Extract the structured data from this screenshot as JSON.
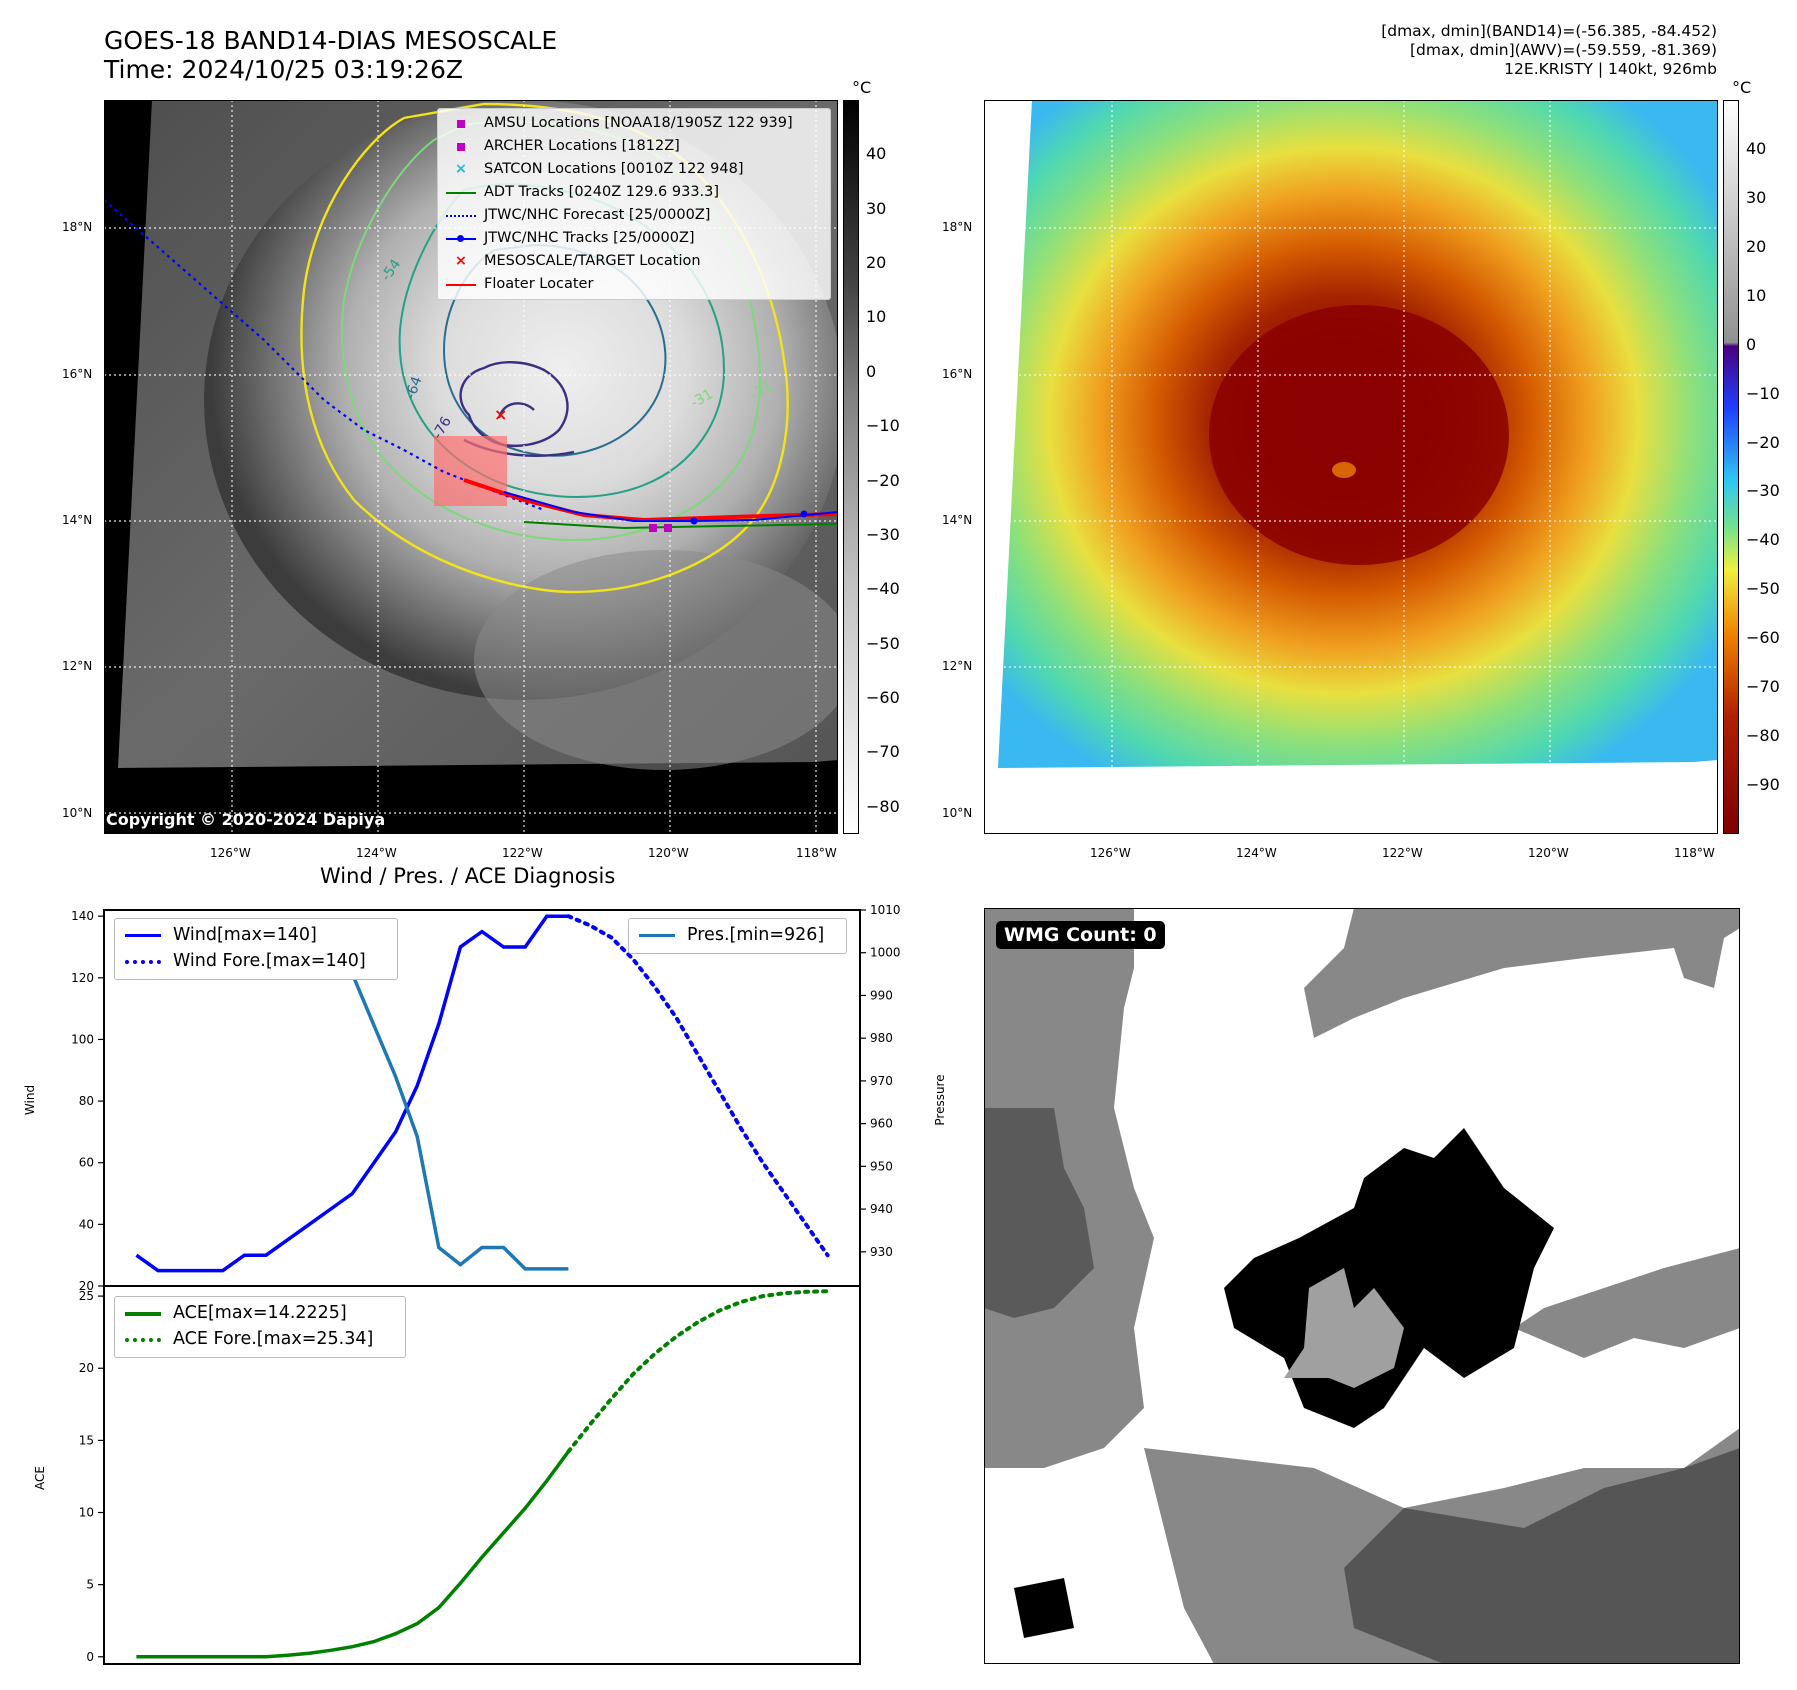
{
  "header": {
    "title_line1": "GOES-18 BAND14-DIAS MESOSCALE",
    "title_line2": "Time: 2024/10/25 03:19:26Z",
    "info_line1": "[dmax, dmin](BAND14)=(-56.385, -84.452)",
    "info_line2": "[dmax, dmin](AWV)=(-59.559, -81.369)",
    "info_line3": "12E.KRISTY | 140kt, 926mb"
  },
  "map_axes": {
    "lat_labels": [
      "18°N",
      "16°N",
      "14°N",
      "12°N",
      "10°N"
    ],
    "lon_labels": [
      "126°W",
      "124°W",
      "122°W",
      "120°W",
      "118°W"
    ]
  },
  "gray_colorbar": {
    "unit": "°C",
    "ticks": [
      "40",
      "30",
      "20",
      "10",
      "0",
      "−10",
      "−20",
      "−30",
      "−40",
      "−50",
      "−60",
      "−70",
      "−80"
    ]
  },
  "color_colorbar": {
    "unit": "°C",
    "ticks": [
      "40",
      "30",
      "20",
      "10",
      "0",
      "−10",
      "−20",
      "−30",
      "−40",
      "−50",
      "−60",
      "−70",
      "−80",
      "−90"
    ]
  },
  "map_legend": {
    "items": [
      {
        "label": "AMSU Locations [NOAA18/1905Z 122 939]",
        "symbol": "square",
        "color": "#c000c0"
      },
      {
        "label": "ARCHER Locations [1812Z]",
        "symbol": "square",
        "color": "#c000c0"
      },
      {
        "label": "SATCON Locations [0010Z 122 948]",
        "symbol": "x",
        "color": "#17becf"
      },
      {
        "label": "ADT Tracks [0240Z 129.6 933.3]",
        "symbol": "line",
        "color": "#008000"
      },
      {
        "label": "JTWC/NHC Forecast [25/0000Z]",
        "symbol": "dotted",
        "color": "#0000ff"
      },
      {
        "label": "JTWC/NHC Tracks [25/0000Z]",
        "symbol": "line-dot",
        "color": "#0000ff"
      },
      {
        "label": "MESOSCALE/TARGET Location",
        "symbol": "x",
        "color": "#ff0000"
      },
      {
        "label": "Floater Locater",
        "symbol": "line",
        "color": "#ff0000"
      }
    ]
  },
  "contour_labels": [
    "-54",
    "-64",
    "-76",
    "-31",
    "-31"
  ],
  "copyright": "Copyright © 2020-2024 Dapiya",
  "wmg_label": "WMG Count: 0",
  "colors": {
    "wind": "#0000ff",
    "pressure": "#1f77b4",
    "ace": "#008000"
  },
  "chart_data": [
    {
      "type": "line",
      "title": "Wind / Pres. / ACE Diagnosis",
      "ylabel": "Wind",
      "y2label": "Pressure",
      "ylim": [
        20,
        142
      ],
      "y2lim": [
        922,
        1010
      ],
      "y_ticks": [
        "140",
        "120",
        "100",
        "80",
        "60",
        "40",
        "20"
      ],
      "y2_ticks": [
        "1010",
        "1000",
        "990",
        "980",
        "970",
        "960",
        "950",
        "940",
        "930"
      ],
      "x": [
        0,
        1,
        2,
        3,
        4,
        5,
        6,
        7,
        8,
        9,
        10,
        11,
        12,
        13,
        14,
        15,
        16,
        17,
        18,
        19,
        20
      ],
      "series": [
        {
          "name": "Wind[max=140]",
          "axis": "left",
          "style": "solid",
          "x": [
            0,
            1,
            2,
            3,
            4,
            5,
            6,
            7,
            8,
            9,
            10,
            11,
            12,
            13,
            14,
            15,
            16,
            17,
            18,
            19,
            20
          ],
          "values": [
            30,
            25,
            25,
            25,
            25,
            30,
            30,
            35,
            40,
            45,
            50,
            60,
            70,
            85,
            105,
            130,
            135,
            130,
            130,
            140,
            140
          ]
        },
        {
          "name": "Wind Fore.[max=140]",
          "axis": "left",
          "style": "dotted",
          "x": [
            20,
            21,
            22,
            23,
            24,
            25,
            26,
            27,
            28,
            29,
            30,
            31,
            32
          ],
          "values": [
            140,
            137,
            133,
            126,
            117,
            107,
            95,
            83,
            71,
            60,
            50,
            40,
            30
          ]
        },
        {
          "name": "Pres.[min=926]",
          "axis": "right",
          "style": "solid",
          "x": [
            0,
            1,
            2,
            3,
            4,
            5,
            6,
            7,
            8,
            9,
            10,
            11,
            12,
            13,
            14,
            15,
            16,
            17,
            18,
            19,
            20
          ],
          "values": [
            1006,
            1006,
            1006,
            1007,
            1007,
            1006,
            1005,
            1005,
            1003,
            1000,
            995,
            983,
            971,
            957,
            931,
            927,
            931,
            931,
            926,
            926,
            926
          ]
        }
      ]
    },
    {
      "type": "line",
      "ylabel": "ACE",
      "ylim": [
        -0.5,
        25.7
      ],
      "y_ticks": [
        "25",
        "20",
        "15",
        "10",
        "5",
        "0"
      ],
      "series": [
        {
          "name": "ACE[max=14.2225]",
          "style": "solid",
          "x": [
            0,
            1,
            2,
            3,
            4,
            5,
            6,
            7,
            8,
            9,
            10,
            11,
            12,
            13,
            14,
            15,
            16,
            17,
            18,
            19,
            20
          ],
          "values": [
            0,
            0,
            0,
            0,
            0,
            0,
            0,
            0.1,
            0.25,
            0.45,
            0.7,
            1.05,
            1.6,
            2.3,
            3.4,
            5.1,
            6.9,
            8.6,
            10.3,
            12.2,
            14.2225
          ]
        },
        {
          "name": "ACE Fore.[max=25.34]",
          "style": "dotted",
          "x": [
            20,
            21,
            22,
            23,
            24,
            25,
            26,
            27,
            28,
            29,
            30,
            31,
            32
          ],
          "values": [
            14.2225,
            16.1,
            17.9,
            19.6,
            21.0,
            22.2,
            23.2,
            24.0,
            24.6,
            25.0,
            25.2,
            25.3,
            25.34
          ]
        }
      ]
    }
  ]
}
